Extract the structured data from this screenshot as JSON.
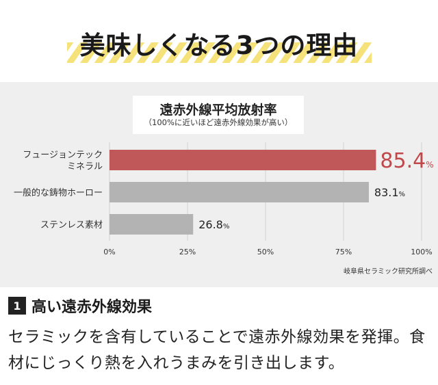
{
  "header": {
    "title": "美味しくなる3つの理由"
  },
  "chart_header": {
    "title": "遠赤外線平均放射率",
    "subtitle": "（100%に近いほど遠赤外線効果が高い）"
  },
  "source": "岐阜県セラミック研究所調べ",
  "chart_data": {
    "type": "bar",
    "orientation": "horizontal",
    "title": "遠赤外線平均放射率",
    "categories": [
      "フュージョンテック\nミネラル",
      "一般的な鋳物ホーロー",
      "ステンレス素材"
    ],
    "values": [
      85.4,
      83.1,
      26.8
    ],
    "value_labels": [
      "85.4",
      "83.1",
      "26.8"
    ],
    "value_unit": "%",
    "xlim": [
      0,
      100
    ],
    "x_ticks": [
      "0%",
      "25%",
      "50%",
      "75%",
      "100%"
    ],
    "colors": [
      "#c0585a",
      "#b3b3b3",
      "#b3b3b3"
    ],
    "highlight_label_color": "#c0474a",
    "grid": true
  },
  "point": {
    "number": "1",
    "title": "高い遠赤外線効果",
    "body": "セラミックを含有していることで遠赤外線効果を発揮。食材にじっくり熱を入れうまみを引き出します。"
  }
}
